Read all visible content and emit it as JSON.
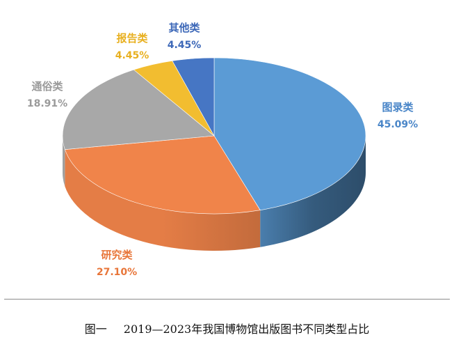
{
  "chart_data": {
    "type": "pie",
    "style": "3d",
    "start_angle_deg": 90,
    "direction": "clockwise",
    "slices": [
      {
        "label": "图录类",
        "value": 45.09,
        "value_label": "45.09%",
        "color": "#5b9bd5",
        "label_color": "#4a86c8"
      },
      {
        "label": "研究类",
        "value": 27.1,
        "value_label": "27.10%",
        "color": "#f0844a",
        "label_color": "#e8763a"
      },
      {
        "label": "通俗类",
        "value": 18.91,
        "value_label": "18.91%",
        "color": "#a8a8a8",
        "label_color": "#9a9a9a"
      },
      {
        "label": "报告类",
        "value": 4.45,
        "value_label": "4.45%",
        "color": "#f2bd30",
        "label_color": "#e8b020"
      },
      {
        "label": "其他类",
        "value": 4.45,
        "value_label": "4.45%",
        "color": "#4676c4",
        "label_color": "#3d68b8"
      }
    ]
  },
  "caption": {
    "label": "图一",
    "text": "2019—2023年我国博物馆出版图书不同类型占比"
  }
}
